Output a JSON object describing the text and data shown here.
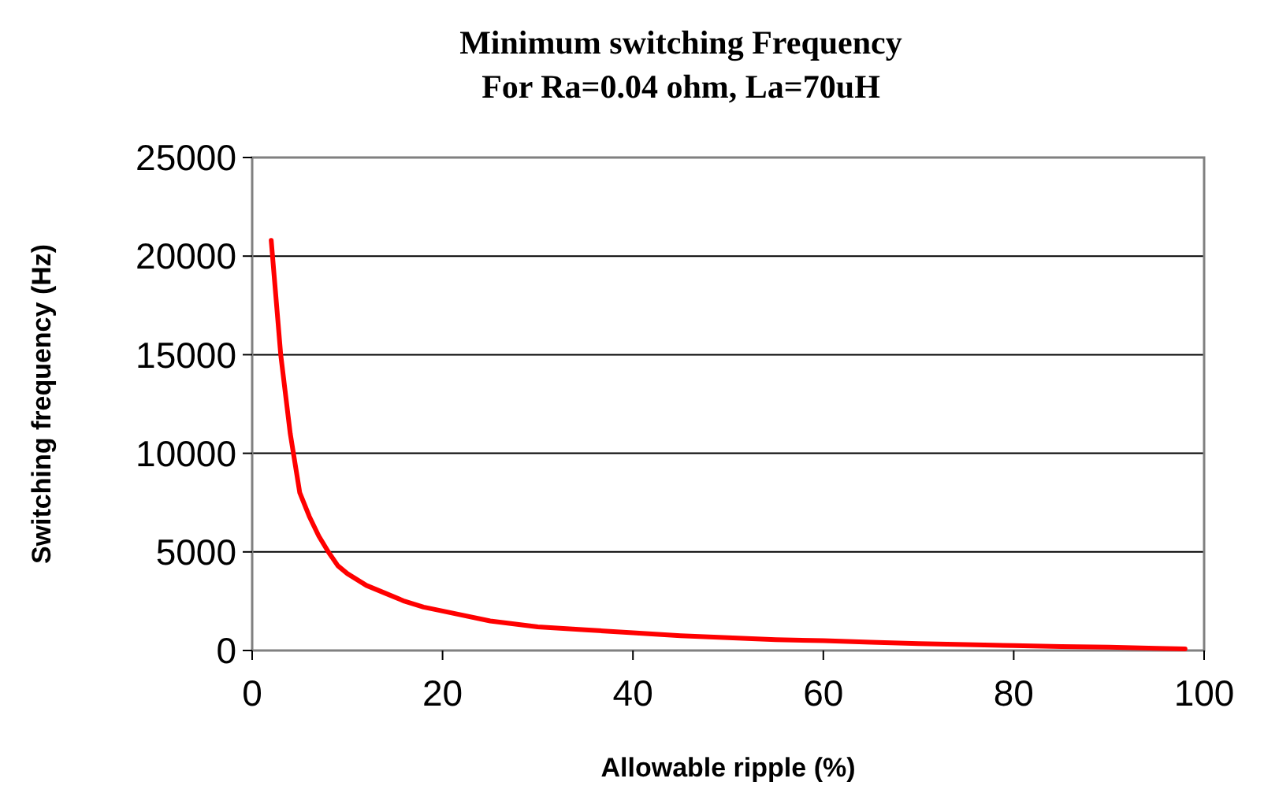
{
  "chart_data": {
    "type": "line",
    "title": "Minimum switching Frequency\nFor Ra=0.04 ohm, La=70uH",
    "xlabel": "Allowable ripple (%)",
    "ylabel": "Switching frequency (Hz)",
    "x": [
      2,
      3,
      4,
      5,
      6,
      7,
      8,
      9,
      10,
      12,
      14,
      16,
      18,
      20,
      25,
      30,
      35,
      40,
      45,
      50,
      55,
      60,
      65,
      70,
      75,
      80,
      85,
      90,
      95,
      98
    ],
    "series": [
      {
        "color": "#ff0000",
        "values": [
          20800,
          15000,
          11000,
          8000,
          6800,
          5800,
          5000,
          4300,
          3900,
          3300,
          2900,
          2500,
          2200,
          2000,
          1500,
          1200,
          1050,
          900,
          750,
          650,
          550,
          500,
          420,
          350,
          300,
          250,
          200,
          170,
          110,
          80
        ]
      }
    ],
    "xlim": [
      0,
      100
    ],
    "xticks": [
      0,
      20,
      40,
      60,
      80,
      100
    ],
    "ylim": [
      0,
      25000
    ],
    "yticks": [
      0,
      5000,
      10000,
      15000,
      20000,
      25000
    ],
    "grid": "y",
    "marker": "none",
    "line_style": "solid"
  }
}
